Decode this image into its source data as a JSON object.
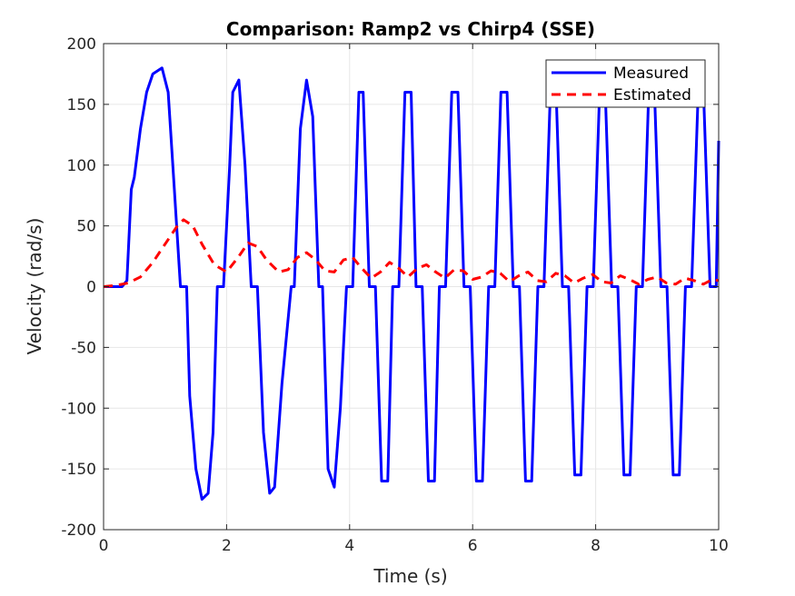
{
  "chart_data": {
    "type": "line",
    "title": "Comparison: Ramp2 vs Chirp4 (SSE)",
    "xlabel": "Time (s)",
    "ylabel": "Velocity (rad/s)",
    "xlim": [
      0,
      10
    ],
    "ylim": [
      -200,
      200
    ],
    "xticks": [
      "0",
      "2",
      "4",
      "6",
      "8",
      "10"
    ],
    "yticks": [
      "-200",
      "-150",
      "-100",
      "-50",
      "0",
      "50",
      "100",
      "150",
      "200"
    ],
    "grid": true,
    "legend_position": "top-right",
    "series": [
      {
        "name": "Measured",
        "color": "#0000ff",
        "style": "solid",
        "x": [
          0,
          0.3,
          0.38,
          0.45,
          0.5,
          0.6,
          0.7,
          0.8,
          0.95,
          1.05,
          1.15,
          1.25,
          1.35,
          1.4,
          1.5,
          1.6,
          1.7,
          1.78,
          1.85,
          1.95,
          2.05,
          2.1,
          2.2,
          2.3,
          2.4,
          2.5,
          2.6,
          2.7,
          2.78,
          2.9,
          3.05,
          3.1,
          3.2,
          3.3,
          3.4,
          3.5,
          3.56,
          3.65,
          3.75,
          3.85,
          3.95,
          4.05,
          4.15,
          4.22,
          4.32,
          4.42,
          4.52,
          4.62,
          4.7,
          4.8,
          4.9,
          5.0,
          5.08,
          5.18,
          5.28,
          5.38,
          5.46,
          5.56,
          5.66,
          5.76,
          5.86,
          5.96,
          6.06,
          6.16,
          6.26,
          6.36,
          6.46,
          6.56,
          6.66,
          6.76,
          6.86,
          6.96,
          7.06,
          7.16,
          7.26,
          7.36,
          7.46,
          7.56,
          7.66,
          7.76,
          7.86,
          7.96,
          8.06,
          8.16,
          8.26,
          8.36,
          8.46,
          8.56,
          8.66,
          8.76,
          8.86,
          8.96,
          9.06,
          9.16,
          9.26,
          9.36,
          9.46,
          9.56,
          9.66,
          9.76,
          9.86,
          9.96,
          10.0
        ],
        "y": [
          0,
          0,
          5,
          80,
          90,
          130,
          160,
          175,
          180,
          160,
          80,
          0,
          0,
          -90,
          -150,
          -175,
          -170,
          -120,
          0,
          0,
          100,
          160,
          170,
          100,
          0,
          0,
          -120,
          -170,
          -165,
          -80,
          0,
          0,
          130,
          170,
          140,
          0,
          0,
          -150,
          -165,
          -100,
          0,
          0,
          160,
          160,
          0,
          0,
          -160,
          -160,
          0,
          0,
          160,
          160,
          0,
          0,
          -160,
          -160,
          0,
          0,
          160,
          160,
          0,
          0,
          -160,
          -160,
          0,
          0,
          160,
          160,
          0,
          0,
          -160,
          -160,
          0,
          0,
          155,
          155,
          0,
          0,
          -155,
          -155,
          0,
          0,
          155,
          155,
          0,
          0,
          -155,
          -155,
          0,
          0,
          155,
          155,
          0,
          0,
          -155,
          -155,
          0,
          0,
          150,
          150,
          0,
          0,
          120
        ]
      },
      {
        "name": "Estimated",
        "color": "#ff0000",
        "style": "dashed",
        "x": [
          0,
          0.2,
          0.4,
          0.6,
          0.8,
          1.0,
          1.2,
          1.3,
          1.45,
          1.6,
          1.8,
          2.0,
          2.2,
          2.35,
          2.5,
          2.65,
          2.85,
          3.0,
          3.15,
          3.3,
          3.45,
          3.6,
          3.75,
          3.9,
          4.05,
          4.2,
          4.35,
          4.5,
          4.65,
          4.8,
          4.95,
          5.1,
          5.25,
          5.4,
          5.55,
          5.7,
          5.85,
          6.0,
          6.15,
          6.3,
          6.45,
          6.6,
          6.75,
          6.9,
          7.05,
          7.2,
          7.35,
          7.5,
          7.65,
          7.8,
          7.95,
          8.1,
          8.25,
          8.4,
          8.55,
          8.7,
          8.85,
          9.0,
          9.15,
          9.3,
          9.45,
          9.6,
          9.75,
          9.9,
          10.0
        ],
        "y": [
          0,
          1,
          3,
          8,
          20,
          35,
          50,
          55,
          50,
          35,
          18,
          12,
          25,
          36,
          33,
          22,
          12,
          14,
          24,
          28,
          22,
          13,
          12,
          22,
          24,
          15,
          7,
          12,
          20,
          15,
          8,
          15,
          18,
          12,
          7,
          14,
          13,
          6,
          8,
          13,
          11,
          4,
          9,
          12,
          5,
          4,
          11,
          9,
          3,
          7,
          10,
          4,
          3,
          9,
          6,
          2,
          6,
          8,
          3,
          2,
          7,
          5,
          2,
          6,
          5
        ]
      }
    ]
  }
}
